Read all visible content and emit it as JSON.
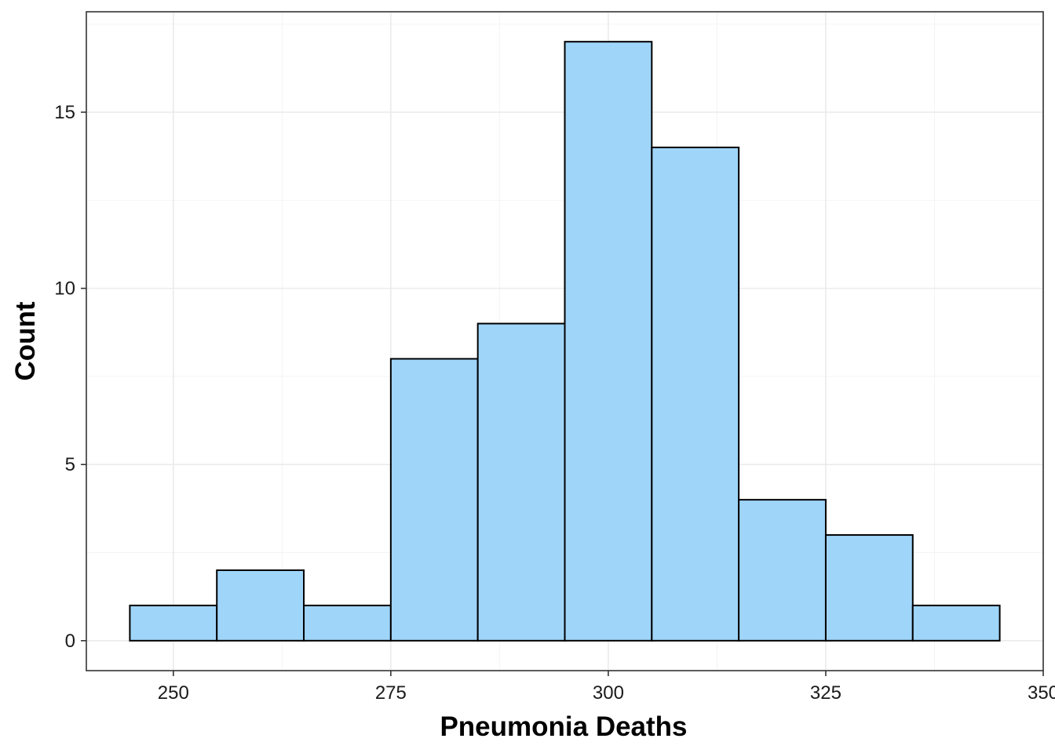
{
  "chart_data": {
    "type": "bar",
    "subtype": "histogram",
    "title": "",
    "xlabel": "Pneumonia Deaths",
    "ylabel": "Count",
    "bin_width": 10,
    "bins": [
      {
        "x_start": 245,
        "x_end": 255,
        "count": 1
      },
      {
        "x_start": 255,
        "x_end": 265,
        "count": 2
      },
      {
        "x_start": 265,
        "x_end": 275,
        "count": 1
      },
      {
        "x_start": 275,
        "x_end": 285,
        "count": 8
      },
      {
        "x_start": 285,
        "x_end": 295,
        "count": 9
      },
      {
        "x_start": 295,
        "x_end": 305,
        "count": 17
      },
      {
        "x_start": 305,
        "x_end": 315,
        "count": 14
      },
      {
        "x_start": 315,
        "x_end": 325,
        "count": 4
      },
      {
        "x_start": 325,
        "x_end": 335,
        "count": 3
      },
      {
        "x_start": 335,
        "x_end": 345,
        "count": 1
      }
    ],
    "xlim": [
      240,
      350
    ],
    "ylim": [
      -0.85,
      17.85
    ],
    "x_ticks": [
      250,
      275,
      300,
      325,
      350
    ],
    "y_ticks": [
      0,
      5,
      10,
      15
    ],
    "x_minor_ticks": [
      262.5,
      287.5,
      312.5,
      337.5
    ],
    "y_minor_ticks": [
      2.5,
      7.5,
      12.5,
      17.5
    ],
    "grid": true,
    "legend": "none",
    "colors": {
      "bar_fill": "#A0D5FA",
      "bar_stroke": "#000000",
      "grid_major": "#EBEBEB",
      "grid_minor": "#F4F4F4",
      "panel_border": "#333333"
    }
  }
}
